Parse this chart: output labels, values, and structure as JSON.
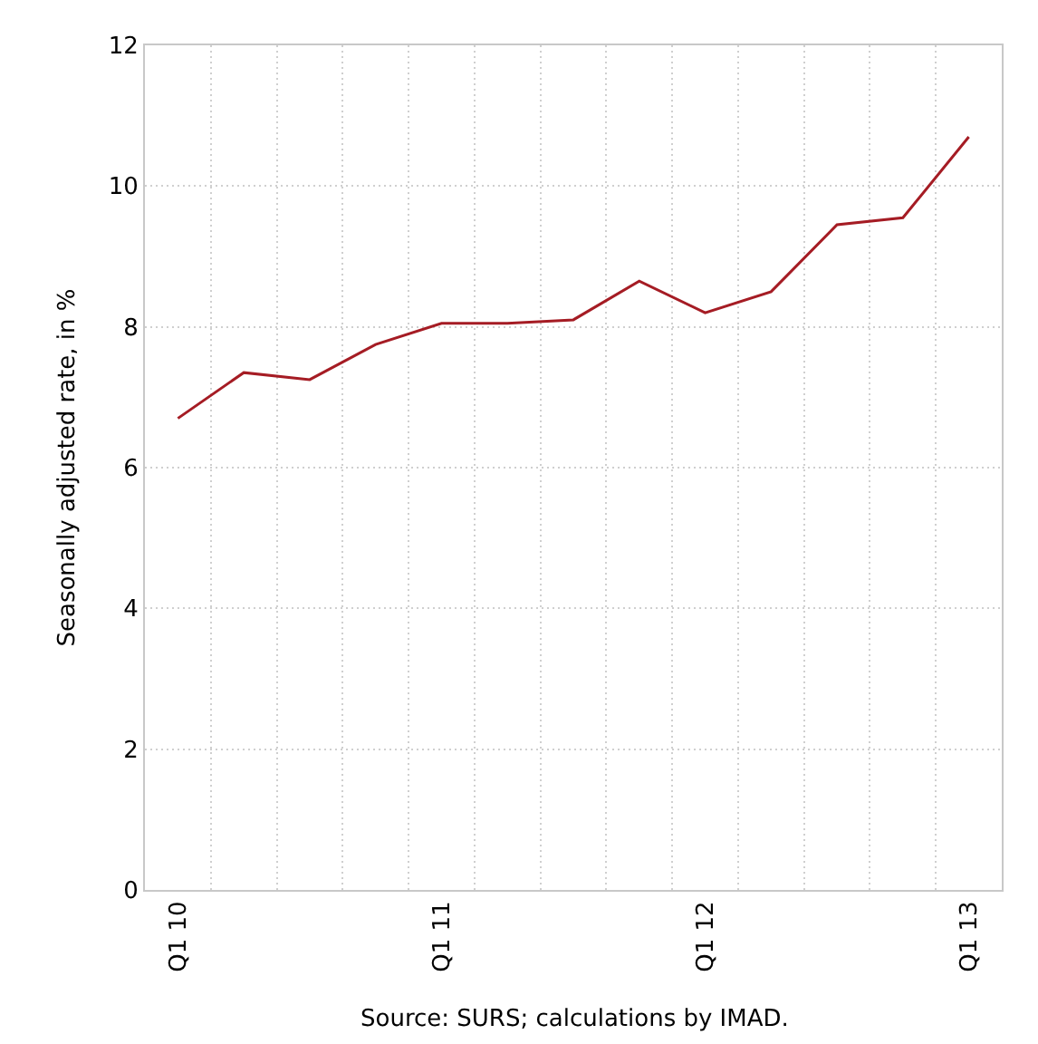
{
  "chart_data": {
    "type": "line",
    "ylabel": "Seasonally adjusted rate, in %",
    "annotations": [
      "Source: SURS; calculations by IMAD."
    ],
    "categories": [
      "Q1 10",
      null,
      null,
      null,
      "Q1 11",
      null,
      null,
      null,
      "Q1 12",
      null,
      null,
      null,
      "Q1 13"
    ],
    "series": [
      {
        "color": "#a51c24",
        "values": [
          6.7,
          7.35,
          7.25,
          7.75,
          8.05,
          8.05,
          8.1,
          8.65,
          8.2,
          8.5,
          9.45,
          9.55,
          10.7
        ]
      }
    ],
    "ylim": [
      0,
      12
    ],
    "yticks": [
      0,
      2,
      4,
      6,
      8,
      10,
      12
    ],
    "grid": true,
    "marker": "none",
    "line_style": "solid"
  }
}
